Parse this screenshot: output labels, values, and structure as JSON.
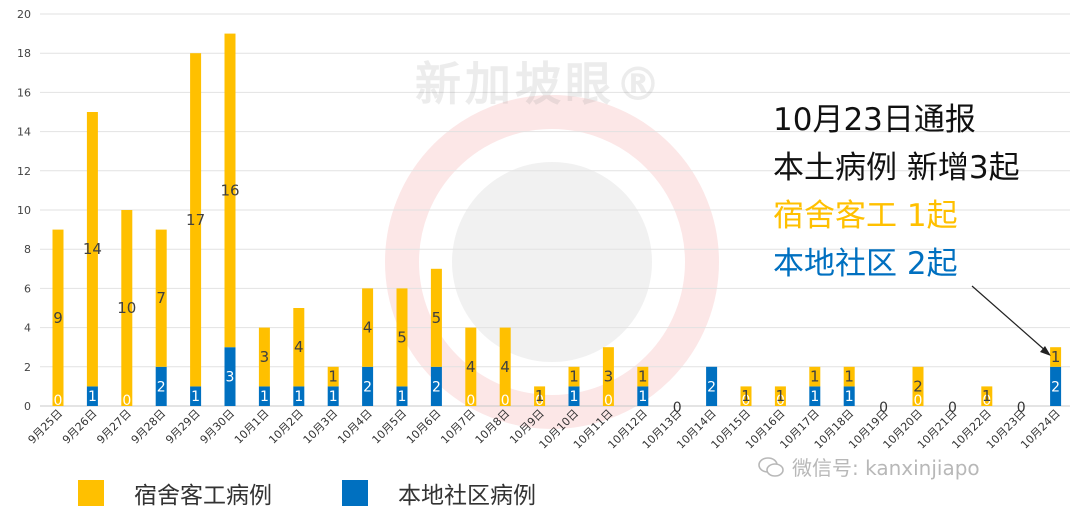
{
  "watermark": "新加坡眼®",
  "wechat_text": "微信号: kanxinjiapo",
  "annotation": {
    "line1": "10月23日通报",
    "line2": "本土病例 新增3起",
    "line3": "宿舍客工 1起",
    "line4": "本地社区 2起"
  },
  "colors": {
    "dorm": "#FFC000",
    "community": "#0070C0",
    "dorm_dark": "#F4B200"
  },
  "chart_data": {
    "type": "bar",
    "stacked": true,
    "ylim": [
      0,
      20
    ],
    "yticks": [
      0,
      2,
      4,
      6,
      8,
      10,
      12,
      14,
      16,
      18,
      20
    ],
    "grid": true,
    "legend_position": "bottom-left",
    "categories": [
      "9月25日",
      "9月26日",
      "9月27日",
      "9月28日",
      "9月29日",
      "9月30日",
      "10月1日",
      "10月2日",
      "10月3日",
      "10月4日",
      "10月5日",
      "10月6日",
      "10月7日",
      "10月8日",
      "10月9日",
      "10月10日",
      "10月11日",
      "10月12日",
      "10月13日",
      "10月14日",
      "10月15日",
      "10月16日",
      "10月17日",
      "10月18日",
      "10月19日",
      "10月20日",
      "10月21日",
      "10月22日",
      "10月23日",
      "10月24日"
    ],
    "series": [
      {
        "name": "本地社区病例",
        "color": "#0070C0",
        "values": [
          0,
          1,
          0,
          2,
          1,
          3,
          1,
          1,
          1,
          2,
          1,
          2,
          0,
          0,
          0,
          1,
          0,
          1,
          0,
          2,
          0,
          0,
          1,
          1,
          0,
          0,
          0,
          0,
          0,
          2
        ]
      },
      {
        "name": "宿舍客工病例",
        "color": "#FFC000",
        "values": [
          9,
          14,
          10,
          7,
          17,
          16,
          3,
          4,
          1,
          4,
          5,
          5,
          4,
          4,
          1,
          1,
          3,
          1,
          0,
          0,
          1,
          1,
          1,
          1,
          0,
          2,
          0,
          1,
          0,
          1
        ]
      }
    ]
  }
}
